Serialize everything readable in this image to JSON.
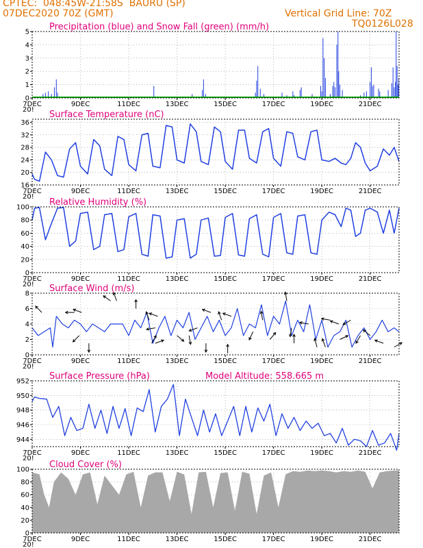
{
  "header": {
    "line1": "CPTEC:  048:45W-21:58S  BAURU (SP)",
    "line2": "07DEC2020 70Z (GMT)",
    "grid_note": "Vertical Grid Line: 70Z",
    "code": "TQ0126L028"
  },
  "colors": {
    "header": "#e07000",
    "title": "#e0007a",
    "line": "#1f3fe0",
    "rain": "#1f3fe0",
    "snow": "#00a000",
    "cloud": "#a8a8a8",
    "arrow": "#000000"
  },
  "x_axis": {
    "labels": [
      "7DEC",
      "9DEC",
      "11DEC",
      "13DEC",
      "15DEC",
      "17DEC",
      "19DEC",
      "21DEC"
    ],
    "label_days": [
      0,
      2,
      4,
      6,
      8,
      10,
      12,
      14
    ],
    "stub_text": "20!",
    "range_days": [
      0,
      15.2
    ]
  },
  "chart_data": [
    {
      "type": "bar",
      "title": "Precipitation (blue) and Snow Fall (green) (mm/h)",
      "ylim": [
        0,
        5
      ],
      "yticks": [
        0,
        1,
        2,
        3,
        4,
        5
      ],
      "grid": "dotted",
      "series": [
        {
          "name": "Precipitation",
          "color": "#1f3fe0",
          "points": [
            [
              0.33,
              0.1
            ],
            [
              0.45,
              0.3
            ],
            [
              0.55,
              0.4
            ],
            [
              0.67,
              0.5
            ],
            [
              0.8,
              0.3
            ],
            [
              0.92,
              0.8
            ],
            [
              1.0,
              1.4
            ],
            [
              1.05,
              0.4
            ],
            [
              5.04,
              0.9
            ],
            [
              6.63,
              0.3
            ],
            [
              7.05,
              0.6
            ],
            [
              7.1,
              1.4
            ],
            [
              7.18,
              0.3
            ],
            [
              9.25,
              0.4
            ],
            [
              9.3,
              1.3
            ],
            [
              9.35,
              2.4
            ],
            [
              9.45,
              0.7
            ],
            [
              9.6,
              0.3
            ],
            [
              10.35,
              0.4
            ],
            [
              10.55,
              0.2
            ],
            [
              10.8,
              0.5
            ],
            [
              10.85,
              0.2
            ],
            [
              11.1,
              0.6
            ],
            [
              11.15,
              0.8
            ],
            [
              11.6,
              0.3
            ],
            [
              11.95,
              0.9
            ],
            [
              12.0,
              0.5
            ],
            [
              12.05,
              4.5
            ],
            [
              12.1,
              3.0
            ],
            [
              12.15,
              1.5
            ],
            [
              12.35,
              0.3
            ],
            [
              12.45,
              0.9
            ],
            [
              12.5,
              1.2
            ],
            [
              12.55,
              0.8
            ],
            [
              12.62,
              4.0
            ],
            [
              12.67,
              5.0
            ],
            [
              12.7,
              2.0
            ],
            [
              12.75,
              1.0
            ],
            [
              12.85,
              0.6
            ],
            [
              13.6,
              0.2
            ],
            [
              13.75,
              0.4
            ],
            [
              13.85,
              0.5
            ],
            [
              14.0,
              1.2
            ],
            [
              14.05,
              2.3
            ],
            [
              14.1,
              0.9
            ],
            [
              14.15,
              1.0
            ],
            [
              14.35,
              0.7
            ],
            [
              14.4,
              0.5
            ],
            [
              14.75,
              0.6
            ],
            [
              14.9,
              1.1
            ],
            [
              14.95,
              2.3
            ],
            [
              15.0,
              0.8
            ],
            [
              15.05,
              1.2
            ],
            [
              15.08,
              5.0
            ],
            [
              15.12,
              2.4
            ],
            [
              15.16,
              1.0
            ],
            [
              15.19,
              1.5
            ]
          ]
        },
        {
          "name": "Snow Fall",
          "color": "#00a000",
          "values": [
            0
          ]
        }
      ]
    },
    {
      "type": "line",
      "title": "Surface Temperature (nC)",
      "ylim": [
        16,
        37
      ],
      "yticks": [
        16,
        20,
        24,
        28,
        32,
        36
      ],
      "grid": "dotted",
      "x": [
        0.0,
        0.1,
        0.3,
        0.55,
        0.8,
        1.05,
        1.3,
        1.55,
        1.8,
        2.0,
        2.3,
        2.55,
        2.8,
        3.0,
        3.3,
        3.55,
        3.8,
        4.0,
        4.3,
        4.55,
        4.8,
        5.0,
        5.3,
        5.55,
        5.8,
        6.0,
        6.3,
        6.55,
        6.8,
        7.0,
        7.3,
        7.55,
        7.8,
        8.0,
        8.3,
        8.55,
        8.8,
        9.0,
        9.3,
        9.55,
        9.8,
        10.0,
        10.3,
        10.55,
        10.8,
        11.0,
        11.3,
        11.55,
        11.8,
        12.0,
        12.3,
        12.55,
        12.8,
        13.0,
        13.2,
        13.4,
        13.6,
        13.8,
        14.0,
        14.3,
        14.55,
        14.8,
        15.0,
        15.2
      ],
      "values": [
        19.5,
        17.8,
        17.2,
        26.5,
        24.0,
        19.0,
        18.5,
        27.5,
        29.5,
        22.0,
        19.5,
        30.5,
        28.5,
        21.0,
        19.0,
        31.5,
        30.5,
        22.5,
        20.5,
        32.0,
        32.5,
        22.0,
        21.5,
        35.0,
        34.5,
        24.0,
        23.0,
        35.5,
        33.0,
        23.5,
        22.5,
        34.5,
        33.0,
        23.5,
        21.0,
        33.5,
        33.5,
        24.5,
        23.0,
        33.0,
        34.0,
        24.5,
        22.0,
        33.0,
        32.5,
        25.0,
        24.0,
        33.0,
        33.5,
        24.0,
        23.5,
        24.5,
        23.0,
        22.5,
        24.5,
        29.5,
        28.0,
        23.0,
        20.5,
        22.0,
        27.5,
        25.5,
        28.0,
        23.5
      ]
    },
    {
      "type": "line",
      "title": "Relative Humidity (%)",
      "ylim": [
        0,
        100
      ],
      "yticks": [
        0,
        20,
        40,
        60,
        80,
        100
      ],
      "grid": "dotted",
      "x": [
        0.0,
        0.1,
        0.3,
        0.55,
        0.8,
        1.05,
        1.3,
        1.55,
        1.8,
        2.0,
        2.3,
        2.55,
        2.8,
        3.0,
        3.3,
        3.55,
        3.8,
        4.0,
        4.3,
        4.55,
        4.8,
        5.0,
        5.3,
        5.55,
        5.8,
        6.0,
        6.3,
        6.55,
        6.8,
        7.0,
        7.3,
        7.55,
        7.8,
        8.0,
        8.3,
        8.55,
        8.8,
        9.0,
        9.3,
        9.55,
        9.8,
        10.0,
        10.3,
        10.55,
        10.8,
        11.0,
        11.3,
        11.55,
        11.8,
        12.0,
        12.3,
        12.55,
        12.8,
        13.0,
        13.2,
        13.4,
        13.6,
        13.8,
        14.0,
        14.3,
        14.55,
        14.8,
        15.0,
        15.2
      ],
      "values": [
        80,
        98,
        99,
        50,
        75,
        98,
        99,
        40,
        48,
        90,
        92,
        35,
        40,
        88,
        90,
        32,
        35,
        85,
        90,
        28,
        25,
        88,
        86,
        22,
        24,
        80,
        82,
        22,
        28,
        80,
        83,
        25,
        26,
        84,
        90,
        27,
        25,
        82,
        88,
        28,
        24,
        84,
        90,
        30,
        28,
        86,
        88,
        30,
        28,
        80,
        92,
        88,
        70,
        98,
        95,
        55,
        60,
        95,
        98,
        92,
        60,
        95,
        60,
        98
      ]
    },
    {
      "type": "line",
      "title": "Surface Wind (m/s)",
      "ylim": [
        0,
        8
      ],
      "yticks": [
        0,
        2,
        4,
        6,
        8
      ],
      "grid": "dotted",
      "x": [
        0.0,
        0.25,
        0.5,
        0.75,
        0.85,
        1.0,
        1.25,
        1.5,
        1.75,
        2.0,
        2.25,
        2.5,
        2.75,
        3.0,
        3.25,
        3.5,
        3.75,
        4.0,
        4.25,
        4.5,
        4.75,
        5.0,
        5.25,
        5.5,
        5.75,
        6.0,
        6.25,
        6.5,
        6.75,
        7.0,
        7.25,
        7.5,
        7.75,
        8.0,
        8.25,
        8.5,
        8.75,
        9.0,
        9.25,
        9.5,
        9.75,
        10.0,
        10.25,
        10.5,
        10.75,
        11.0,
        11.25,
        11.5,
        11.75,
        12.0,
        12.25,
        12.5,
        12.75,
        13.0,
        13.25,
        13.5,
        13.75,
        14.0,
        14.25,
        14.5,
        14.75,
        15.0,
        15.2
      ],
      "values": [
        3.5,
        2.5,
        3.0,
        3.5,
        1.0,
        5.0,
        4.0,
        3.5,
        4.5,
        4.0,
        3.0,
        4.0,
        3.5,
        3.0,
        4.0,
        4.0,
        4.0,
        2.5,
        4.5,
        3.5,
        5.5,
        1.5,
        3.5,
        5.0,
        2.5,
        4.5,
        3.5,
        5.5,
        2.0,
        3.5,
        5.0,
        3.0,
        4.5,
        2.5,
        3.5,
        6.0,
        2.5,
        4.0,
        3.5,
        6.5,
        2.5,
        5.0,
        4.0,
        7.0,
        2.5,
        4.5,
        3.0,
        6.5,
        2.0,
        4.5,
        1.0,
        2.5,
        3.0,
        4.5,
        1.0,
        2.5,
        3.5,
        2.0,
        3.0,
        4.5,
        3.0,
        3.5,
        3.0
      ],
      "arrows": [
        [
          0.4,
          5.5,
          225
        ],
        [
          1.75,
          5.5,
          180
        ],
        [
          1.95,
          2.5,
          135
        ],
        [
          2.05,
          5.5,
          200
        ],
        [
          2.35,
          1.5,
          90
        ],
        [
          3.25,
          7.0,
          215
        ],
        [
          3.5,
          7.0,
          250
        ],
        [
          4.3,
          6.0,
          270
        ],
        [
          4.85,
          4.5,
          250
        ],
        [
          4.95,
          1.5,
          300
        ],
        [
          5.1,
          3.5,
          170
        ],
        [
          5.1,
          1.5,
          340
        ],
        [
          5.2,
          5.0,
          200
        ],
        [
          6.0,
          2.5,
          40
        ],
        [
          6.5,
          2.5,
          80
        ],
        [
          6.85,
          3.5,
          160
        ],
        [
          7.2,
          1.5,
          90
        ],
        [
          7.4,
          5.5,
          200
        ],
        [
          7.85,
          4.5,
          250
        ],
        [
          8.1,
          0.2,
          270
        ],
        [
          8.25,
          5.0,
          200
        ],
        [
          9.15,
          3.0,
          115
        ],
        [
          9.55,
          4.5,
          260
        ],
        [
          9.85,
          2.0,
          310
        ],
        [
          10.55,
          7.0,
          260
        ],
        [
          10.75,
          3.5,
          100
        ],
        [
          10.85,
          1.5,
          270
        ],
        [
          11.45,
          4.0,
          190
        ],
        [
          11.8,
          1.0,
          255
        ],
        [
          12.15,
          1.0,
          250
        ],
        [
          12.35,
          4.5,
          190
        ],
        [
          12.7,
          4.0,
          200
        ],
        [
          12.75,
          2.0,
          335
        ],
        [
          13.2,
          4.5,
          150
        ],
        [
          13.6,
          2.5,
          120
        ],
        [
          14.0,
          2.5,
          220
        ],
        [
          14.55,
          1.5,
          200
        ],
        [
          15.0,
          1.0,
          330
        ]
      ]
    },
    {
      "type": "line",
      "title": "Surface Pressure (hPa)",
      "annotation": "Model Altitude: 558.665 m",
      "ylim": [
        943,
        952
      ],
      "yticks": [
        944,
        946,
        948,
        950,
        952
      ],
      "grid": "dotted",
      "x": [
        0.0,
        0.1,
        0.3,
        0.6,
        0.85,
        1.1,
        1.35,
        1.6,
        1.85,
        2.1,
        2.35,
        2.6,
        2.85,
        3.1,
        3.35,
        3.6,
        3.85,
        4.1,
        4.35,
        4.6,
        4.85,
        5.1,
        5.35,
        5.6,
        5.85,
        6.1,
        6.35,
        6.6,
        6.85,
        7.1,
        7.35,
        7.6,
        7.85,
        8.1,
        8.35,
        8.6,
        8.85,
        9.1,
        9.35,
        9.6,
        9.85,
        10.1,
        10.35,
        10.6,
        10.85,
        11.1,
        11.35,
        11.6,
        11.85,
        12.1,
        12.35,
        12.6,
        12.85,
        13.1,
        13.35,
        13.6,
        13.85,
        14.1,
        14.35,
        14.6,
        14.85,
        15.1,
        15.2
      ],
      "values": [
        949.2,
        949.8,
        949.6,
        949.5,
        947.0,
        948.5,
        944.5,
        947.0,
        945.2,
        945.5,
        948.8,
        945.5,
        948.0,
        944.8,
        948.5,
        945.5,
        948.2,
        944.5,
        948.3,
        947.8,
        950.8,
        945.0,
        948.5,
        949.5,
        951.5,
        944.5,
        949.5,
        947.0,
        944.5,
        948.0,
        945.0,
        947.5,
        944.5,
        946.5,
        948.5,
        944.5,
        948.5,
        945.0,
        948.3,
        946.5,
        948.8,
        944.5,
        947.5,
        945.5,
        947.0,
        945.2,
        946.5,
        945.5,
        946.2,
        944.5,
        944.8,
        943.5,
        945.5,
        943.2,
        944.0,
        943.8,
        943.0,
        945.2,
        943.2,
        943.5,
        944.8,
        942.5,
        944.8
      ]
    },
    {
      "type": "area",
      "title": "Cloud Cover (%)",
      "ylim": [
        0,
        100
      ],
      "yticks": [
        0,
        20,
        40,
        60,
        80,
        100
      ],
      "grid": "dotted",
      "x": [
        0.0,
        0.3,
        0.5,
        0.7,
        0.9,
        1.2,
        1.5,
        1.8,
        2.1,
        2.4,
        2.7,
        3.0,
        3.3,
        3.6,
        3.9,
        4.2,
        4.5,
        4.8,
        5.1,
        5.4,
        5.7,
        6.0,
        6.3,
        6.6,
        6.9,
        7.2,
        7.5,
        7.8,
        8.1,
        8.4,
        8.7,
        9.0,
        9.3,
        9.6,
        9.9,
        10.2,
        10.5,
        10.8,
        11.1,
        11.4,
        11.7,
        12.0,
        12.3,
        12.6,
        12.9,
        13.2,
        13.5,
        13.8,
        14.1,
        14.4,
        14.7,
        15.0,
        15.2
      ],
      "values": [
        95,
        92,
        60,
        40,
        80,
        95,
        85,
        60,
        92,
        95,
        45,
        90,
        75,
        60,
        92,
        96,
        40,
        90,
        95,
        95,
        50,
        96,
        92,
        30,
        95,
        96,
        40,
        94,
        95,
        35,
        96,
        93,
        30,
        90,
        95,
        40,
        92,
        97,
        96,
        98,
        97,
        98,
        97,
        95,
        97,
        96,
        98,
        96,
        70,
        95,
        97,
        98,
        98
      ]
    }
  ]
}
